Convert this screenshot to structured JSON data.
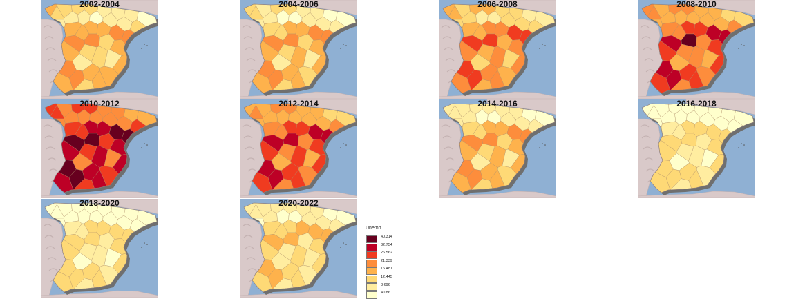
{
  "panels": [
    {
      "title": "2002-2004",
      "fills": [
        3,
        2,
        1,
        2,
        2,
        2,
        1,
        1,
        1,
        0,
        1,
        1,
        0,
        1,
        1,
        2,
        3,
        3,
        4,
        3,
        3,
        4,
        4,
        4,
        2,
        3,
        2,
        2,
        1,
        3,
        3,
        1,
        4,
        4,
        3,
        3,
        3,
        2,
        3
      ]
    },
    {
      "title": "2004-2006",
      "fills": [
        2,
        2,
        1,
        1,
        2,
        2,
        1,
        1,
        0,
        0,
        1,
        0,
        0,
        1,
        1,
        1,
        2,
        2,
        4,
        3,
        3,
        4,
        4,
        4,
        2,
        3,
        2,
        3,
        1,
        3,
        3,
        1,
        4,
        4,
        3,
        3,
        2,
        2,
        3
      ]
    },
    {
      "title": "2006-2008",
      "fills": [
        3,
        3,
        2,
        2,
        3,
        3,
        2,
        2,
        1,
        1,
        2,
        1,
        1,
        2,
        2,
        2,
        3,
        3,
        5,
        4,
        4,
        5,
        5,
        5,
        3,
        4,
        3,
        4,
        2,
        4,
        4,
        2,
        5,
        5,
        4,
        4,
        3,
        3,
        4
      ]
    },
    {
      "title": "2008-2010",
      "fills": [
        4,
        4,
        3,
        3,
        4,
        4,
        3,
        3,
        2,
        2,
        3,
        3,
        3,
        3,
        3,
        4,
        4,
        4,
        6,
        5,
        5,
        6,
        6,
        7,
        4,
        5,
        4,
        4,
        3,
        5,
        5,
        3,
        6,
        6,
        5,
        5,
        4,
        4,
        5
      ]
    },
    {
      "title": "2010-2012",
      "fills": [
        5,
        5,
        4,
        4,
        5,
        5,
        4,
        4,
        3,
        3,
        4,
        4,
        4,
        4,
        4,
        5,
        5,
        5,
        7,
        6,
        6,
        7,
        7,
        7,
        5,
        6,
        5,
        6,
        4,
        6,
        6,
        4,
        7,
        7,
        6,
        6,
        5,
        5,
        6
      ]
    },
    {
      "title": "2012-2014",
      "fills": [
        3,
        4,
        3,
        3,
        4,
        4,
        3,
        3,
        2,
        2,
        3,
        3,
        3,
        3,
        3,
        4,
        4,
        4,
        6,
        5,
        5,
        6,
        6,
        6,
        4,
        5,
        4,
        5,
        3,
        5,
        5,
        3,
        6,
        6,
        5,
        5,
        4,
        4,
        5
      ]
    },
    {
      "title": "2014-2016",
      "fills": [
        1,
        1,
        1,
        1,
        1,
        1,
        1,
        1,
        0,
        0,
        1,
        0,
        0,
        1,
        1,
        1,
        2,
        2,
        4,
        3,
        3,
        4,
        4,
        4,
        2,
        3,
        2,
        3,
        1,
        3,
        3,
        1,
        4,
        4,
        3,
        3,
        2,
        2,
        3
      ]
    },
    {
      "title": "2016-2018",
      "fills": [
        0,
        0,
        0,
        0,
        0,
        0,
        0,
        0,
        0,
        0,
        0,
        0,
        0,
        0,
        0,
        0,
        1,
        1,
        2,
        2,
        2,
        2,
        2,
        2,
        1,
        2,
        1,
        1,
        0,
        2,
        2,
        0,
        2,
        2,
        2,
        2,
        1,
        1,
        2
      ]
    },
    {
      "title": "2018-2020",
      "fills": [
        0,
        0,
        0,
        0,
        0,
        0,
        0,
        0,
        0,
        0,
        0,
        0,
        0,
        0,
        0,
        0,
        1,
        1,
        2,
        2,
        2,
        2,
        2,
        2,
        1,
        2,
        1,
        1,
        0,
        2,
        2,
        0,
        2,
        2,
        2,
        2,
        1,
        1,
        2
      ]
    },
    {
      "title": "2020-2022",
      "fills": [
        1,
        1,
        0,
        1,
        1,
        1,
        1,
        1,
        0,
        0,
        1,
        0,
        0,
        1,
        1,
        1,
        2,
        2,
        3,
        2,
        3,
        3,
        3,
        3,
        1,
        2,
        1,
        2,
        1,
        2,
        2,
        1,
        3,
        3,
        2,
        2,
        1,
        1,
        2
      ]
    }
  ],
  "legend": {
    "title": "Unemp",
    "breaks": [
      "40.314",
      "32.754",
      "26.562",
      "21.339",
      "16.481",
      "12.445",
      "8.696",
      "4.086"
    ],
    "colors": [
      "#ffffcc",
      "#ffeda0",
      "#fed976",
      "#feb24c",
      "#fd8d3c",
      "#f03b20",
      "#bd0026",
      "#67001f"
    ]
  },
  "map_colors": {
    "sea": "#8fb0d3",
    "land": "#d9c9c9",
    "relief": "#c4b2b2",
    "shadow": "#6f6f6f",
    "border": "#b5926b"
  }
}
